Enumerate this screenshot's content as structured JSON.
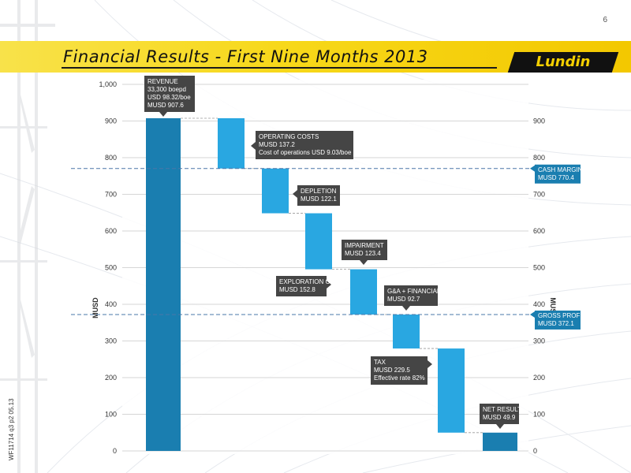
{
  "page_number": "6",
  "title": "Financial Results - First Nine Months 2013",
  "logo_text": "Lundin",
  "doc_ref": "WF11714 q3 p2 05.13",
  "colors": {
    "bar_primary": "#1a7eb0",
    "bar_secondary": "#29a7e1",
    "callout_dark": "#454545",
    "callout_blue": "#1a7eb0",
    "reference_line": "#4a77a8",
    "title_band": "#f7d81a"
  },
  "chart_data": {
    "type": "waterfall",
    "ylabel": "MUSD",
    "y2label": "MUSD",
    "ylim": [
      0,
      1000
    ],
    "left_ticks": [
      "0",
      "100",
      "200",
      "300",
      "400",
      "500",
      "600",
      "700",
      "800",
      "900",
      "1,000"
    ],
    "right_ticks": [
      "0",
      "100",
      "200",
      "300",
      "400",
      "500",
      "600",
      "700",
      "800",
      "900"
    ],
    "steps": [
      {
        "kind": "total",
        "start": 0,
        "end": 907.6,
        "label_lines": [
          "REVENUE",
          "33,300 boepd",
          "USD 98.32/boe",
          "MUSD 907.6"
        ]
      },
      {
        "kind": "decrease",
        "start": 907.6,
        "end": 770.4,
        "label_lines": [
          "OPERATING COSTS",
          "MUSD 137.2",
          "Cost of operations USD 9.03/boe"
        ]
      },
      {
        "kind": "decrease",
        "start": 770.4,
        "end": 648.3,
        "label_lines": [
          "DEPLETION",
          "MUSD 122.1"
        ]
      },
      {
        "kind": "decrease",
        "start": 648.3,
        "end": 495.5,
        "label_lines": [
          "EXPLORATION COSTS",
          "MUSD 152.8"
        ]
      },
      {
        "kind": "decrease",
        "start": 495.5,
        "end": 372.1,
        "label_lines": [
          "IMPAIRMENT",
          "MUSD 123.4"
        ]
      },
      {
        "kind": "decrease",
        "start": 372.1,
        "end": 279.4,
        "label_lines": [
          "G&A + FINANCIAL",
          "MUSD 92.7"
        ]
      },
      {
        "kind": "decrease",
        "start": 279.4,
        "end": 49.9,
        "label_lines": [
          "TAX",
          "MUSD 229.5",
          "Effective rate 82%"
        ]
      },
      {
        "kind": "total",
        "start": 0,
        "end": 49.9,
        "label_lines": [
          "NET RESULT",
          "MUSD 49.9"
        ]
      }
    ],
    "reference_lines": [
      {
        "value": 770.4,
        "label_lines": [
          "CASH MARGIN",
          "MUSD 770.4"
        ]
      },
      {
        "value": 372.1,
        "label_lines": [
          "GROSS PROFIT",
          "MUSD 372.1"
        ]
      }
    ],
    "grid": true
  }
}
